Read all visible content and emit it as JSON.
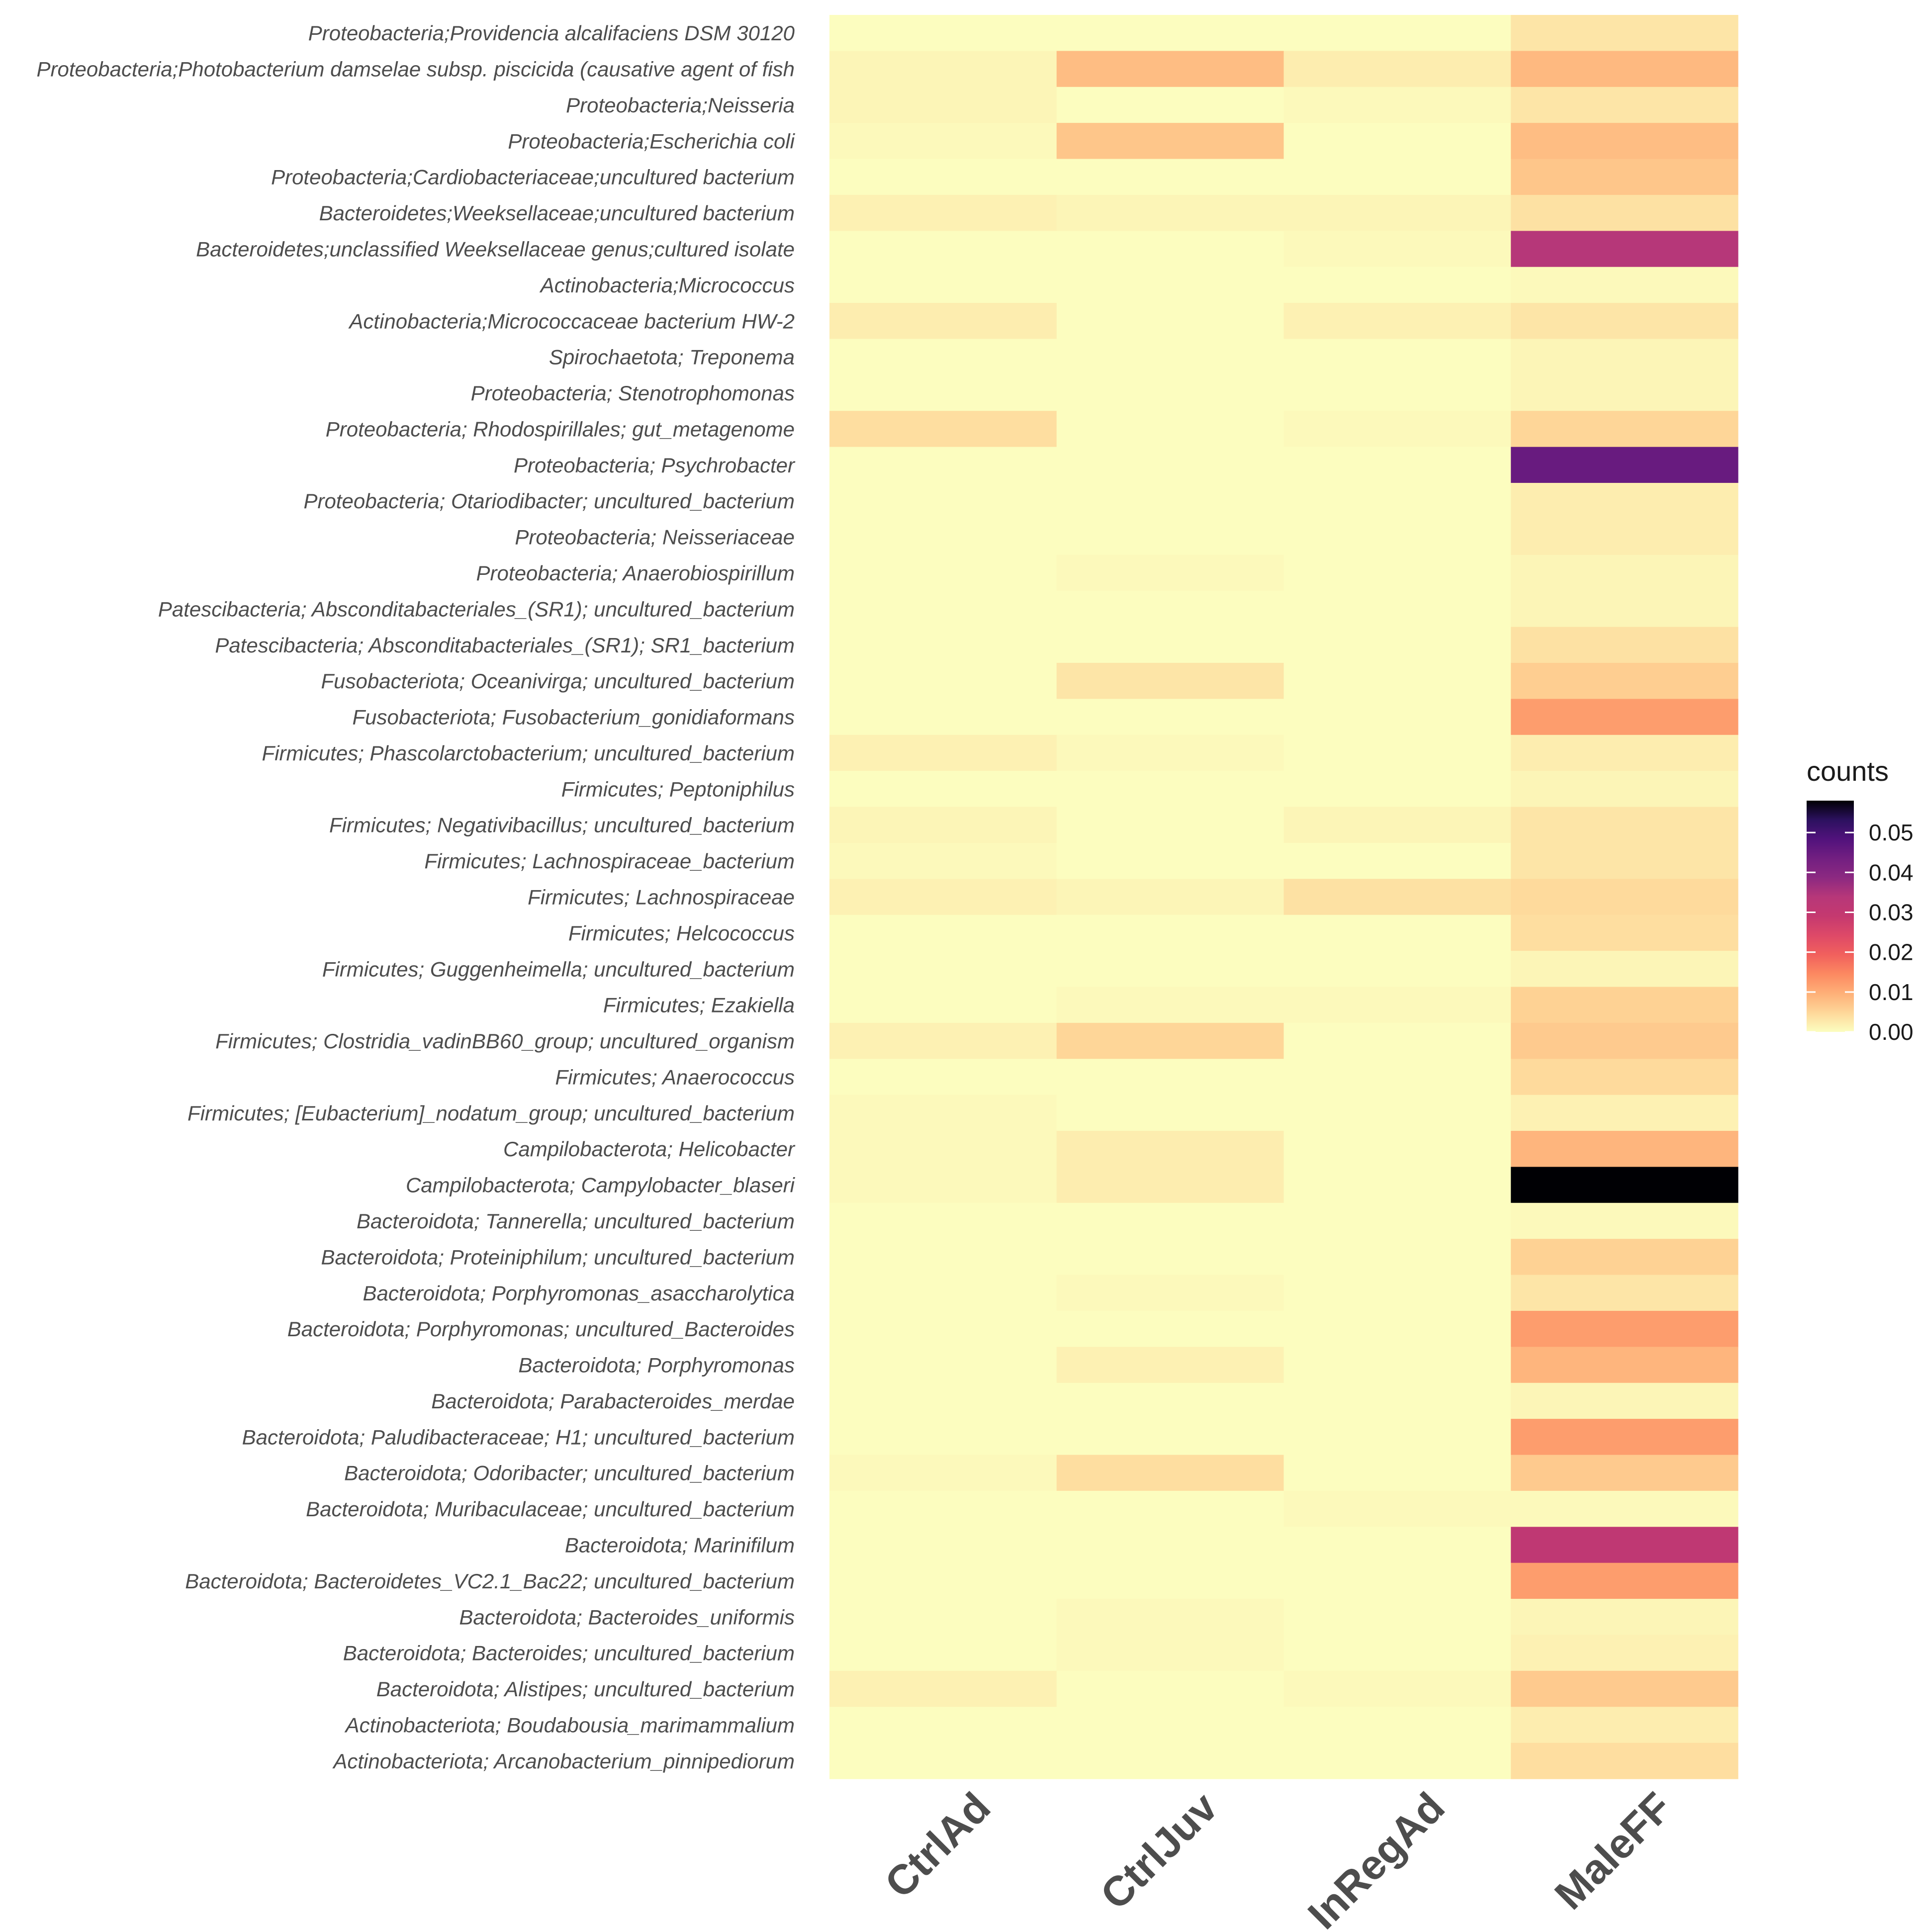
{
  "chart_data": {
    "type": "heatmap",
    "title": "",
    "xlabel": "",
    "ylabel": "",
    "columns": [
      "CtrlAd",
      "CtrlJuv",
      "InRegAd",
      "MaleFF"
    ],
    "rows": [
      "Proteobacteria;Providencia alcalifaciens DSM 30120",
      "Proteobacteria;Photobacterium damselae subsp. piscicida (causative agent of fish",
      "Proteobacteria;Neisseria",
      "Proteobacteria;Escherichia coli",
      "Proteobacteria;Cardiobacteriaceae;uncultured bacterium",
      "Bacteroidetes;Weeksellaceae;uncultured bacterium",
      "Bacteroidetes;unclassified Weeksellaceae genus;cultured isolate",
      "Actinobacteria;Micrococcus",
      "Actinobacteria;Micrococcaceae bacterium HW-2",
      "Spirochaetota; Treponema",
      "Proteobacteria; Stenotrophomonas",
      "Proteobacteria; Rhodospirillales; gut_metagenome",
      "Proteobacteria; Psychrobacter",
      "Proteobacteria; Otariodibacter; uncultured_bacterium",
      "Proteobacteria; Neisseriaceae",
      "Proteobacteria; Anaerobiospirillum",
      "Patescibacteria; Absconditabacteriales_(SR1); uncultured_bacterium",
      "Patescibacteria; Absconditabacteriales_(SR1); SR1_bacterium",
      "Fusobacteriota; Oceanivirga; uncultured_bacterium",
      "Fusobacteriota; Fusobacterium_gonidiaformans",
      "Firmicutes; Phascolarctobacterium; uncultured_bacterium",
      "Firmicutes; Peptoniphilus",
      "Firmicutes; Negativibacillus; uncultured_bacterium",
      "Firmicutes; Lachnospiraceae_bacterium",
      "Firmicutes; Lachnospiraceae",
      "Firmicutes; Helcococcus",
      "Firmicutes; Guggenheimella; uncultured_bacterium",
      "Firmicutes; Ezakiella",
      "Firmicutes; Clostridia_vadinBB60_group; uncultured_organism",
      "Firmicutes; Anaerococcus",
      "Firmicutes; [Eubacterium]_nodatum_group; uncultured_bacterium",
      "Campilobacterota; Helicobacter",
      "Campilobacterota; Campylobacter_blaseri",
      "Bacteroidota; Tannerella; uncultured_bacterium",
      "Bacteroidota; Proteiniphilum; uncultured_bacterium",
      "Bacteroidota; Porphyromonas_asaccharolytica",
      "Bacteroidota; Porphyromonas; uncultured_Bacteroides",
      "Bacteroidota; Porphyromonas",
      "Bacteroidota; Parabacteroides_merdae",
      "Bacteroidota; Paludibacteraceae; H1; uncultured_bacterium",
      "Bacteroidota; Odoribacter; uncultured_bacterium",
      "Bacteroidota; Muribaculaceae; uncultured_bacterium",
      "Bacteroidota; Marinifilum",
      "Bacteroidota; Bacteroidetes_VC2.1_Bac22; uncultured_bacterium",
      "Bacteroidota; Bacteroides_uniformis",
      "Bacteroidota; Bacteroides; uncultured_bacterium",
      "Bacteroidota; Alistipes; uncultured_bacterium",
      "Actinobacteriota; Boudabousia_marimammalium",
      "Actinobacteriota; Arcanobacterium_pinnipediorum"
    ],
    "values": [
      [
        0.0,
        0.0,
        0.0,
        0.003
      ],
      [
        0.001,
        0.008,
        0.002,
        0.0085
      ],
      [
        0.001,
        0.0,
        0.0005,
        0.003
      ],
      [
        0.0005,
        0.007,
        0.0,
        0.008
      ],
      [
        0.0,
        0.0,
        0.0,
        0.007
      ],
      [
        0.0015,
        0.001,
        0.001,
        0.0035
      ],
      [
        0.0,
        0.0,
        0.0005,
        0.034
      ],
      [
        0.0,
        0.0,
        0.0,
        0.0005
      ],
      [
        0.002,
        0.0,
        0.0015,
        0.003
      ],
      [
        0.0,
        0.0,
        0.0,
        0.001
      ],
      [
        0.0,
        0.0,
        0.0,
        0.001
      ],
      [
        0.004,
        0.0,
        0.0005,
        0.005
      ],
      [
        0.0,
        0.0,
        0.0,
        0.045
      ],
      [
        0.0,
        0.0,
        0.0,
        0.002
      ],
      [
        0.0,
        0.0,
        0.0,
        0.002
      ],
      [
        0.0,
        0.0005,
        0.0,
        0.001
      ],
      [
        0.0,
        0.0,
        0.0,
        0.001
      ],
      [
        0.0,
        0.0,
        0.0,
        0.0035
      ],
      [
        0.0,
        0.003,
        0.0,
        0.006
      ],
      [
        0.0,
        0.0,
        0.0,
        0.012
      ],
      [
        0.0015,
        0.0005,
        0.0,
        0.002
      ],
      [
        0.0,
        0.0,
        0.0,
        0.001
      ],
      [
        0.001,
        0.0,
        0.001,
        0.003
      ],
      [
        0.0005,
        0.0,
        0.0,
        0.003
      ],
      [
        0.0015,
        0.001,
        0.0035,
        0.0045
      ],
      [
        0.0,
        0.0,
        0.0,
        0.004
      ],
      [
        0.0,
        0.0,
        0.0,
        0.001
      ],
      [
        0.0,
        0.0005,
        0.0005,
        0.0055
      ],
      [
        0.0015,
        0.005,
        0.0,
        0.0065
      ],
      [
        0.0,
        0.0,
        0.0,
        0.0045
      ],
      [
        0.0005,
        0.0,
        0.0,
        0.0015
      ],
      [
        0.0005,
        0.002,
        0.0,
        0.009
      ],
      [
        0.0005,
        0.002,
        0.0,
        0.058
      ],
      [
        0.0,
        0.0,
        0.0,
        0.0005
      ],
      [
        0.0,
        0.0,
        0.0,
        0.0055
      ],
      [
        0.0,
        0.0005,
        0.0,
        0.003
      ],
      [
        0.0,
        0.0,
        0.0,
        0.012
      ],
      [
        0.0,
        0.0015,
        0.0,
        0.009
      ],
      [
        0.0,
        0.0,
        0.0,
        0.001
      ],
      [
        0.0,
        0.0,
        0.0,
        0.012
      ],
      [
        0.0005,
        0.004,
        0.0,
        0.0065
      ],
      [
        0.0,
        0.0,
        0.0005,
        0.0005
      ],
      [
        0.0,
        0.0,
        0.0,
        0.031
      ],
      [
        0.0,
        0.0,
        0.0,
        0.012
      ],
      [
        0.0,
        0.0005,
        0.0,
        0.001
      ],
      [
        0.0,
        0.0005,
        0.0,
        0.0015
      ],
      [
        0.0015,
        0.0,
        0.0005,
        0.0065
      ],
      [
        0.0,
        0.0,
        0.0,
        0.002
      ],
      [
        0.0,
        0.0,
        0.0,
        0.004
      ]
    ],
    "colorbar": {
      "title": "counts",
      "ticks": [
        0.0,
        0.01,
        0.02,
        0.03,
        0.04,
        0.05
      ],
      "tick_labels": [
        "0.00",
        "0.01",
        "0.02",
        "0.03",
        "0.04",
        "0.05"
      ],
      "range": [
        0,
        0.058
      ],
      "palette": "magma-reversed",
      "stops": [
        "#fcfdbf",
        "#fed799",
        "#feb078",
        "#fc8961",
        "#f1605d",
        "#de4968",
        "#c5396f",
        "#b73779",
        "#8c2981",
        "#721f81",
        "#51127c",
        "#2c115f",
        "#000004"
      ]
    },
    "legend_position": "right"
  }
}
